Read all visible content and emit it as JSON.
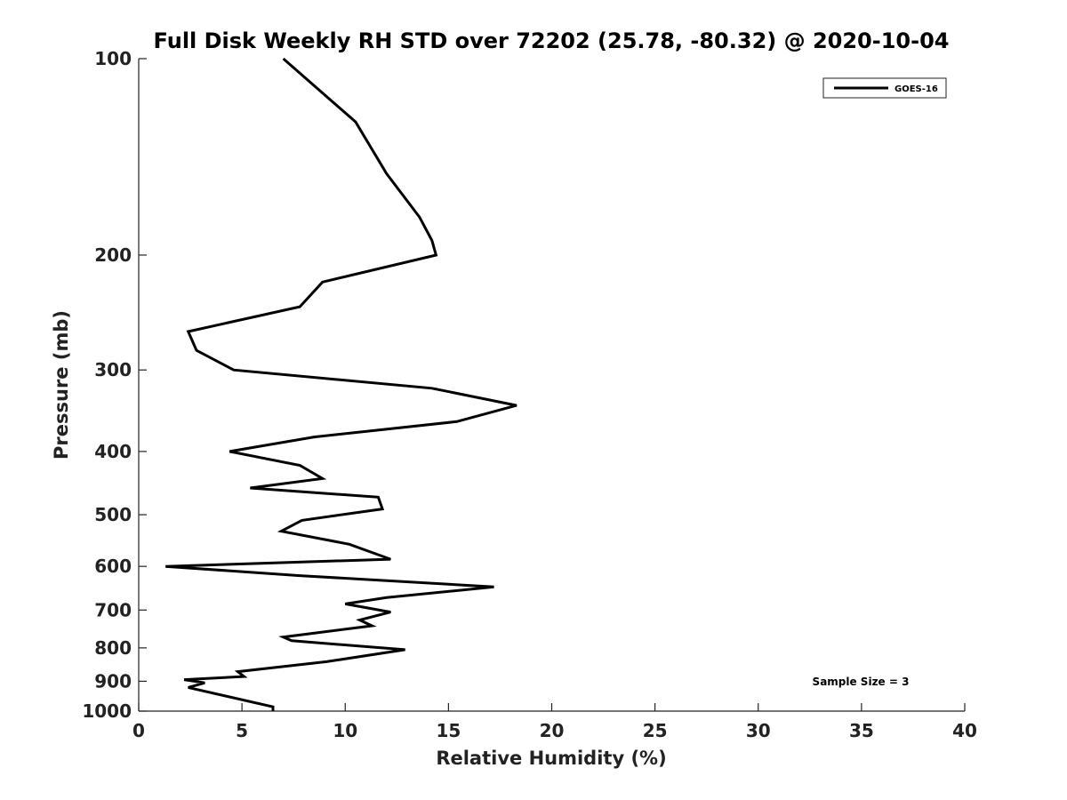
{
  "chart_data": {
    "type": "line",
    "title": "Full Disk Weekly RH STD over 72202 (25.78, -80.32) @ 2020-10-04",
    "xlabel": "Relative Humidity (%)",
    "ylabel": "Pressure (mb)",
    "xlim": [
      0,
      40
    ],
    "ylim": [
      100,
      1000
    ],
    "yscale": "log",
    "y_reversed": true,
    "x_ticks": [
      0,
      5,
      10,
      15,
      20,
      25,
      30,
      35,
      40
    ],
    "x_tick_labels": [
      "0",
      "5",
      "10",
      "15",
      "20",
      "25",
      "30",
      "35",
      "40"
    ],
    "y_ticks": [
      100,
      200,
      300,
      400,
      500,
      600,
      700,
      800,
      900,
      1000
    ],
    "y_tick_labels": [
      "100",
      "200",
      "300",
      "400",
      "500",
      "600",
      "700",
      "800",
      "900",
      "1000"
    ],
    "legend": {
      "placement": "top-right",
      "entries": [
        "GOES-16"
      ]
    },
    "annotation": "Sample Size = 3",
    "grid": false,
    "series": [
      {
        "name": "GOES-16",
        "color": "#000000",
        "points": [
          [
            7.0,
            100
          ],
          [
            10.5,
            125
          ],
          [
            12.0,
            150
          ],
          [
            13.6,
            175
          ],
          [
            14.2,
            190
          ],
          [
            14.4,
            200
          ],
          [
            8.9,
            220
          ],
          [
            7.8,
            240
          ],
          [
            2.4,
            262
          ],
          [
            2.8,
            280
          ],
          [
            4.6,
            300
          ],
          [
            14.2,
            320
          ],
          [
            18.3,
            340
          ],
          [
            15.4,
            360
          ],
          [
            8.5,
            380
          ],
          [
            4.4,
            400
          ],
          [
            7.8,
            420
          ],
          [
            8.9,
            440
          ],
          [
            5.4,
            455
          ],
          [
            11.6,
            470
          ],
          [
            11.8,
            490
          ],
          [
            7.9,
            510
          ],
          [
            6.9,
            530
          ],
          [
            10.2,
            555
          ],
          [
            12.2,
            585
          ],
          [
            1.3,
            600
          ],
          [
            7.8,
            620
          ],
          [
            17.2,
            645
          ],
          [
            12.0,
            670
          ],
          [
            10.0,
            685
          ],
          [
            12.2,
            705
          ],
          [
            10.7,
            725
          ],
          [
            11.3,
            740
          ],
          [
            7.0,
            770
          ],
          [
            7.4,
            780
          ],
          [
            12.9,
            805
          ],
          [
            9.1,
            840
          ],
          [
            4.8,
            870
          ],
          [
            5.1,
            885
          ],
          [
            2.2,
            895
          ],
          [
            3.2,
            905
          ],
          [
            2.4,
            920
          ],
          [
            6.5,
            985
          ],
          [
            6.5,
            1000
          ]
        ]
      }
    ]
  }
}
